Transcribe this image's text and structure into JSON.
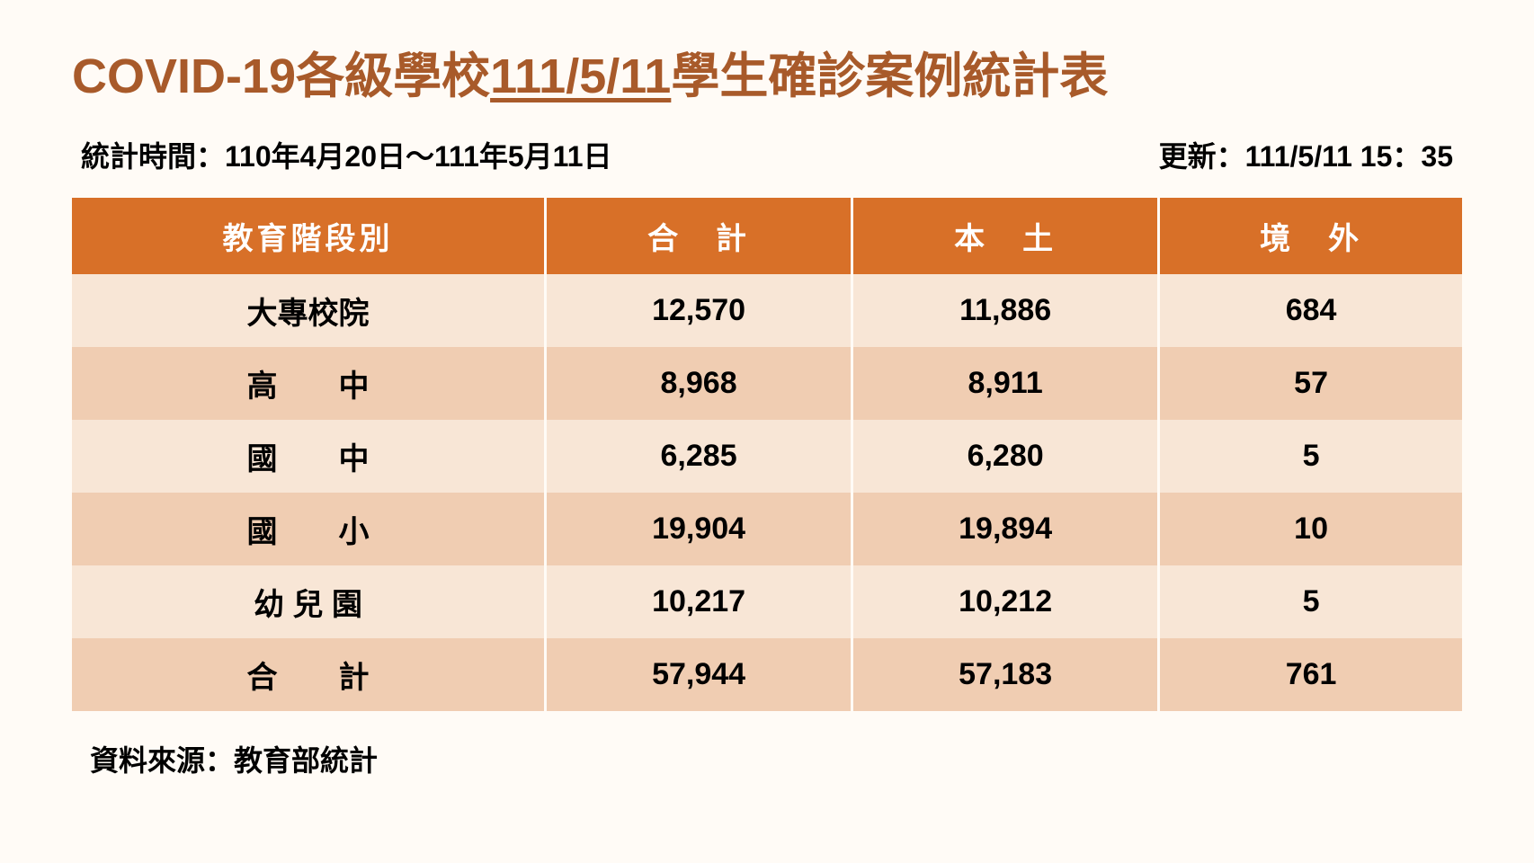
{
  "title": {
    "prefix": "COVID-19各級學校",
    "date_underlined": "111/5/11",
    "suffix": "學生確診案例統計表",
    "color": "#a85a2a",
    "fontsize": 54
  },
  "meta": {
    "period_label": "統計時間：110年4月20日～111年5月11日",
    "update_label": "更新：111/5/11  15：35",
    "fontsize": 32
  },
  "table": {
    "type": "table",
    "header_bg": "#d87028",
    "header_fg": "#ffffff",
    "row_odd_bg": "#f8e6d6",
    "row_even_bg": "#f0cdb2",
    "border_color": "#fffbf6",
    "fontsize": 34,
    "columns": [
      "教育階段別",
      "合　計",
      "本　土",
      "境　外"
    ],
    "rows": [
      {
        "label": "大專校院",
        "total": "12,570",
        "local": "11,886",
        "overseas": "684"
      },
      {
        "label": "高　　中",
        "total": "8,968",
        "local": "8,911",
        "overseas": "57"
      },
      {
        "label": "國　　中",
        "total": "6,285",
        "local": "6,280",
        "overseas": "5"
      },
      {
        "label": "國　　小",
        "total": "19,904",
        "local": "19,894",
        "overseas": "10"
      },
      {
        "label": "幼 兒 園",
        "total": "10,217",
        "local": "10,212",
        "overseas": "5"
      },
      {
        "label": "合　　計",
        "total": "57,944",
        "local": "57,183",
        "overseas": "761"
      }
    ]
  },
  "source": {
    "text": "資料來源：教育部統計",
    "fontsize": 32
  },
  "background_color": "#fffbf6"
}
